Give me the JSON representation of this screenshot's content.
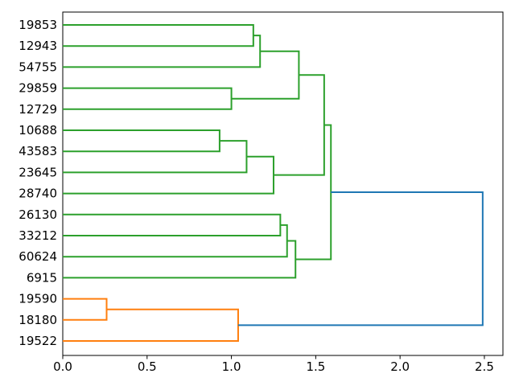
{
  "chart_data": {
    "type": "dendrogram",
    "title": "",
    "xlabel": "",
    "ylabel": "",
    "orientation": "leaves-left-root-right",
    "grid": false,
    "legend": null,
    "x_axis": {
      "tick_labels": [
        "0.0",
        "0.5",
        "1.0",
        "1.5",
        "2.0",
        "2.5"
      ],
      "tick_values": [
        0,
        0.5,
        1.0,
        1.5,
        2.0,
        2.5
      ],
      "range": [
        0,
        2.61
      ]
    },
    "y_axis": {
      "leaf_labels": [
        "19853",
        "12943",
        "54755",
        "29859",
        "12729",
        "10688",
        "43583",
        "23645",
        "28740",
        "26130",
        "33212",
        "60624",
        "6915",
        "19590",
        "18180",
        "19522"
      ]
    },
    "links": [
      {
        "a": "L0",
        "b": "L1",
        "height": 1.13,
        "color": "green"
      },
      {
        "a": 0,
        "b": "L2",
        "height": 1.17,
        "color": "green"
      },
      {
        "a": "L3",
        "b": "L4",
        "height": 1.0,
        "color": "green"
      },
      {
        "a": 1,
        "b": 2,
        "height": 1.4,
        "color": "green"
      },
      {
        "a": "L5",
        "b": "L6",
        "height": 0.93,
        "color": "green"
      },
      {
        "a": 4,
        "b": "L7",
        "height": 1.09,
        "color": "green"
      },
      {
        "a": 5,
        "b": "L8",
        "height": 1.25,
        "color": "green"
      },
      {
        "a": 3,
        "b": 6,
        "height": 1.55,
        "color": "green"
      },
      {
        "a": "L9",
        "b": "L10",
        "height": 1.29,
        "color": "green"
      },
      {
        "a": 8,
        "b": "L11",
        "height": 1.33,
        "color": "green"
      },
      {
        "a": 9,
        "b": "L12",
        "height": 1.38,
        "color": "green"
      },
      {
        "a": 7,
        "b": 10,
        "height": 1.59,
        "color": "green"
      },
      {
        "a": "L13",
        "b": "L14",
        "height": 0.26,
        "color": "orange"
      },
      {
        "a": 12,
        "b": "L15",
        "height": 1.04,
        "color": "orange"
      },
      {
        "a": 11,
        "b": 13,
        "height": 2.49,
        "color": "blue"
      }
    ],
    "root_height": 2.49,
    "palette": {
      "green": "#2ca02c",
      "orange": "#ff7f0e",
      "blue": "#1f77b4",
      "axis": "#000000",
      "background": "#ffffff"
    }
  }
}
